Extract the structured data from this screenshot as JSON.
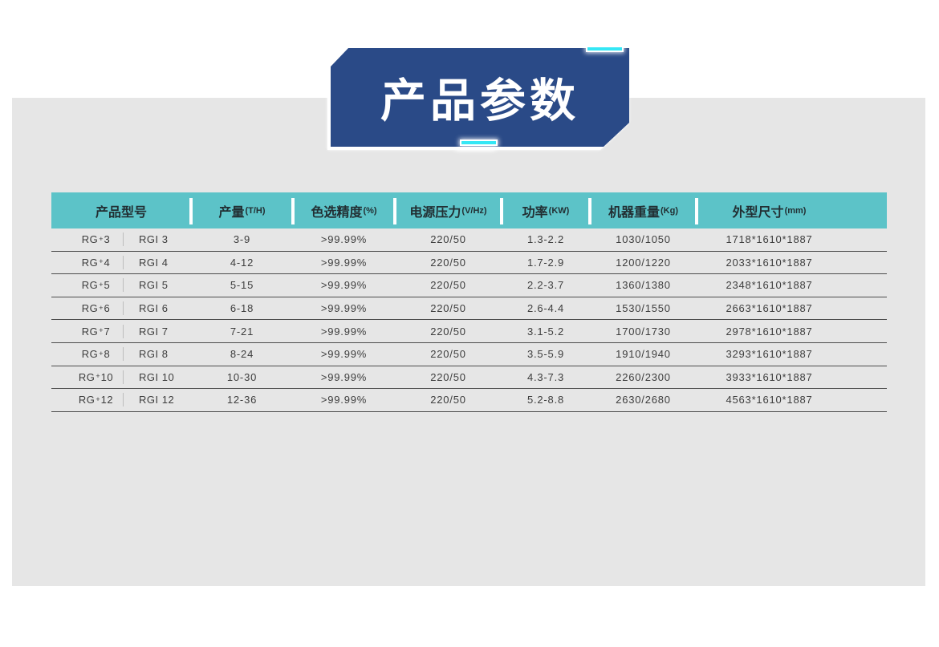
{
  "banner": {
    "title": "产品参数"
  },
  "colors": {
    "banner_bg": "#2a4a87",
    "accent_cyan": "#35e7f5",
    "table_header_bg": "#5cc3c8",
    "panel_bg": "#e6e6e6"
  },
  "table": {
    "columns": [
      {
        "key": "model",
        "label": "产品型号",
        "unit": ""
      },
      {
        "key": "output",
        "label": "产量",
        "unit": "(T/H)"
      },
      {
        "key": "accuracy",
        "label": "色选精度",
        "unit": "(%)"
      },
      {
        "key": "voltage",
        "label": "电源压力",
        "unit": "(V/Hz)"
      },
      {
        "key": "power",
        "label": "功率",
        "unit": "(KW)"
      },
      {
        "key": "weight",
        "label": "机器重量",
        "unit": "(Kg)"
      },
      {
        "key": "dimensions",
        "label": "外型尺寸",
        "unit": "(mm)"
      }
    ],
    "rows": [
      {
        "model_a": "RG+3",
        "model_b": "RGI 3",
        "output": "3-9",
        "accuracy": ">99.99%",
        "voltage": "220/50",
        "power": "1.3-2.2",
        "weight": "1030/1050",
        "dimensions": "1718*1610*1887"
      },
      {
        "model_a": "RG+4",
        "model_b": "RGI 4",
        "output": "4-12",
        "accuracy": ">99.99%",
        "voltage": "220/50",
        "power": "1.7-2.9",
        "weight": "1200/1220",
        "dimensions": "2033*1610*1887"
      },
      {
        "model_a": "RG+5",
        "model_b": "RGI 5",
        "output": "5-15",
        "accuracy": ">99.99%",
        "voltage": "220/50",
        "power": "2.2-3.7",
        "weight": "1360/1380",
        "dimensions": "2348*1610*1887"
      },
      {
        "model_a": "RG+6",
        "model_b": "RGI 6",
        "output": "6-18",
        "accuracy": ">99.99%",
        "voltage": "220/50",
        "power": "2.6-4.4",
        "weight": "1530/1550",
        "dimensions": "2663*1610*1887"
      },
      {
        "model_a": "RG+7",
        "model_b": "RGI 7",
        "output": "7-21",
        "accuracy": ">99.99%",
        "voltage": "220/50",
        "power": "3.1-5.2",
        "weight": "1700/1730",
        "dimensions": "2978*1610*1887"
      },
      {
        "model_a": "RG+8",
        "model_b": "RGI 8",
        "output": "8-24",
        "accuracy": ">99.99%",
        "voltage": "220/50",
        "power": "3.5-5.9",
        "weight": "1910/1940",
        "dimensions": "3293*1610*1887"
      },
      {
        "model_a": "RG+10",
        "model_b": "RGI 10",
        "output": "10-30",
        "accuracy": ">99.99%",
        "voltage": "220/50",
        "power": "4.3-7.3",
        "weight": "2260/2300",
        "dimensions": "3933*1610*1887"
      },
      {
        "model_a": "RG+12",
        "model_b": "RGI 12",
        "output": "12-36",
        "accuracy": ">99.99%",
        "voltage": "220/50",
        "power": "5.2-8.8",
        "weight": "2630/2680",
        "dimensions": "4563*1610*1887"
      }
    ]
  }
}
